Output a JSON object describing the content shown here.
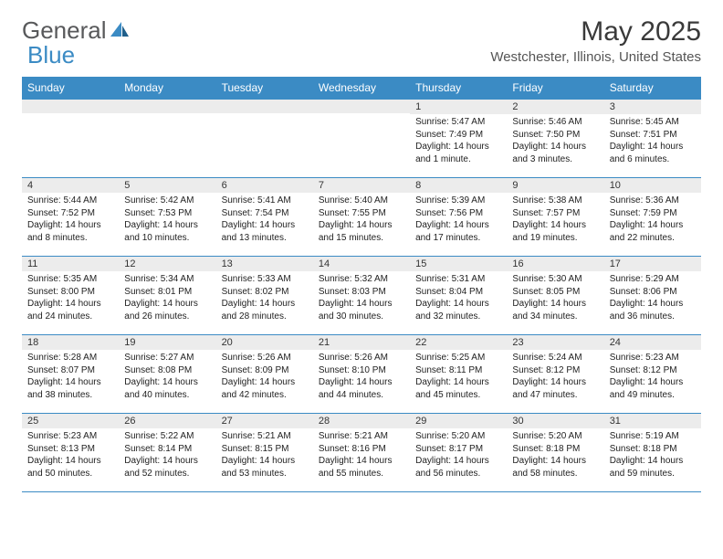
{
  "logo": {
    "text1": "General",
    "text2": "Blue"
  },
  "title": "May 2025",
  "location": "Westchester, Illinois, United States",
  "theme": {
    "header_bg": "#3b8bc4",
    "header_fg": "#ffffff",
    "daynum_bg": "#ececec",
    "border_color": "#3b8bc4",
    "text_color": "#222222",
    "title_color": "#3a3a3a"
  },
  "day_headers": [
    "Sunday",
    "Monday",
    "Tuesday",
    "Wednesday",
    "Thursday",
    "Friday",
    "Saturday"
  ],
  "weeks": [
    [
      {
        "num": "",
        "sunrise": "",
        "sunset": "",
        "daylight": ""
      },
      {
        "num": "",
        "sunrise": "",
        "sunset": "",
        "daylight": ""
      },
      {
        "num": "",
        "sunrise": "",
        "sunset": "",
        "daylight": ""
      },
      {
        "num": "",
        "sunrise": "",
        "sunset": "",
        "daylight": ""
      },
      {
        "num": "1",
        "sunrise": "Sunrise: 5:47 AM",
        "sunset": "Sunset: 7:49 PM",
        "daylight": "Daylight: 14 hours and 1 minute."
      },
      {
        "num": "2",
        "sunrise": "Sunrise: 5:46 AM",
        "sunset": "Sunset: 7:50 PM",
        "daylight": "Daylight: 14 hours and 3 minutes."
      },
      {
        "num": "3",
        "sunrise": "Sunrise: 5:45 AM",
        "sunset": "Sunset: 7:51 PM",
        "daylight": "Daylight: 14 hours and 6 minutes."
      }
    ],
    [
      {
        "num": "4",
        "sunrise": "Sunrise: 5:44 AM",
        "sunset": "Sunset: 7:52 PM",
        "daylight": "Daylight: 14 hours and 8 minutes."
      },
      {
        "num": "5",
        "sunrise": "Sunrise: 5:42 AM",
        "sunset": "Sunset: 7:53 PM",
        "daylight": "Daylight: 14 hours and 10 minutes."
      },
      {
        "num": "6",
        "sunrise": "Sunrise: 5:41 AM",
        "sunset": "Sunset: 7:54 PM",
        "daylight": "Daylight: 14 hours and 13 minutes."
      },
      {
        "num": "7",
        "sunrise": "Sunrise: 5:40 AM",
        "sunset": "Sunset: 7:55 PM",
        "daylight": "Daylight: 14 hours and 15 minutes."
      },
      {
        "num": "8",
        "sunrise": "Sunrise: 5:39 AM",
        "sunset": "Sunset: 7:56 PM",
        "daylight": "Daylight: 14 hours and 17 minutes."
      },
      {
        "num": "9",
        "sunrise": "Sunrise: 5:38 AM",
        "sunset": "Sunset: 7:57 PM",
        "daylight": "Daylight: 14 hours and 19 minutes."
      },
      {
        "num": "10",
        "sunrise": "Sunrise: 5:36 AM",
        "sunset": "Sunset: 7:59 PM",
        "daylight": "Daylight: 14 hours and 22 minutes."
      }
    ],
    [
      {
        "num": "11",
        "sunrise": "Sunrise: 5:35 AM",
        "sunset": "Sunset: 8:00 PM",
        "daylight": "Daylight: 14 hours and 24 minutes."
      },
      {
        "num": "12",
        "sunrise": "Sunrise: 5:34 AM",
        "sunset": "Sunset: 8:01 PM",
        "daylight": "Daylight: 14 hours and 26 minutes."
      },
      {
        "num": "13",
        "sunrise": "Sunrise: 5:33 AM",
        "sunset": "Sunset: 8:02 PM",
        "daylight": "Daylight: 14 hours and 28 minutes."
      },
      {
        "num": "14",
        "sunrise": "Sunrise: 5:32 AM",
        "sunset": "Sunset: 8:03 PM",
        "daylight": "Daylight: 14 hours and 30 minutes."
      },
      {
        "num": "15",
        "sunrise": "Sunrise: 5:31 AM",
        "sunset": "Sunset: 8:04 PM",
        "daylight": "Daylight: 14 hours and 32 minutes."
      },
      {
        "num": "16",
        "sunrise": "Sunrise: 5:30 AM",
        "sunset": "Sunset: 8:05 PM",
        "daylight": "Daylight: 14 hours and 34 minutes."
      },
      {
        "num": "17",
        "sunrise": "Sunrise: 5:29 AM",
        "sunset": "Sunset: 8:06 PM",
        "daylight": "Daylight: 14 hours and 36 minutes."
      }
    ],
    [
      {
        "num": "18",
        "sunrise": "Sunrise: 5:28 AM",
        "sunset": "Sunset: 8:07 PM",
        "daylight": "Daylight: 14 hours and 38 minutes."
      },
      {
        "num": "19",
        "sunrise": "Sunrise: 5:27 AM",
        "sunset": "Sunset: 8:08 PM",
        "daylight": "Daylight: 14 hours and 40 minutes."
      },
      {
        "num": "20",
        "sunrise": "Sunrise: 5:26 AM",
        "sunset": "Sunset: 8:09 PM",
        "daylight": "Daylight: 14 hours and 42 minutes."
      },
      {
        "num": "21",
        "sunrise": "Sunrise: 5:26 AM",
        "sunset": "Sunset: 8:10 PM",
        "daylight": "Daylight: 14 hours and 44 minutes."
      },
      {
        "num": "22",
        "sunrise": "Sunrise: 5:25 AM",
        "sunset": "Sunset: 8:11 PM",
        "daylight": "Daylight: 14 hours and 45 minutes."
      },
      {
        "num": "23",
        "sunrise": "Sunrise: 5:24 AM",
        "sunset": "Sunset: 8:12 PM",
        "daylight": "Daylight: 14 hours and 47 minutes."
      },
      {
        "num": "24",
        "sunrise": "Sunrise: 5:23 AM",
        "sunset": "Sunset: 8:12 PM",
        "daylight": "Daylight: 14 hours and 49 minutes."
      }
    ],
    [
      {
        "num": "25",
        "sunrise": "Sunrise: 5:23 AM",
        "sunset": "Sunset: 8:13 PM",
        "daylight": "Daylight: 14 hours and 50 minutes."
      },
      {
        "num": "26",
        "sunrise": "Sunrise: 5:22 AM",
        "sunset": "Sunset: 8:14 PM",
        "daylight": "Daylight: 14 hours and 52 minutes."
      },
      {
        "num": "27",
        "sunrise": "Sunrise: 5:21 AM",
        "sunset": "Sunset: 8:15 PM",
        "daylight": "Daylight: 14 hours and 53 minutes."
      },
      {
        "num": "28",
        "sunrise": "Sunrise: 5:21 AM",
        "sunset": "Sunset: 8:16 PM",
        "daylight": "Daylight: 14 hours and 55 minutes."
      },
      {
        "num": "29",
        "sunrise": "Sunrise: 5:20 AM",
        "sunset": "Sunset: 8:17 PM",
        "daylight": "Daylight: 14 hours and 56 minutes."
      },
      {
        "num": "30",
        "sunrise": "Sunrise: 5:20 AM",
        "sunset": "Sunset: 8:18 PM",
        "daylight": "Daylight: 14 hours and 58 minutes."
      },
      {
        "num": "31",
        "sunrise": "Sunrise: 5:19 AM",
        "sunset": "Sunset: 8:18 PM",
        "daylight": "Daylight: 14 hours and 59 minutes."
      }
    ]
  ]
}
